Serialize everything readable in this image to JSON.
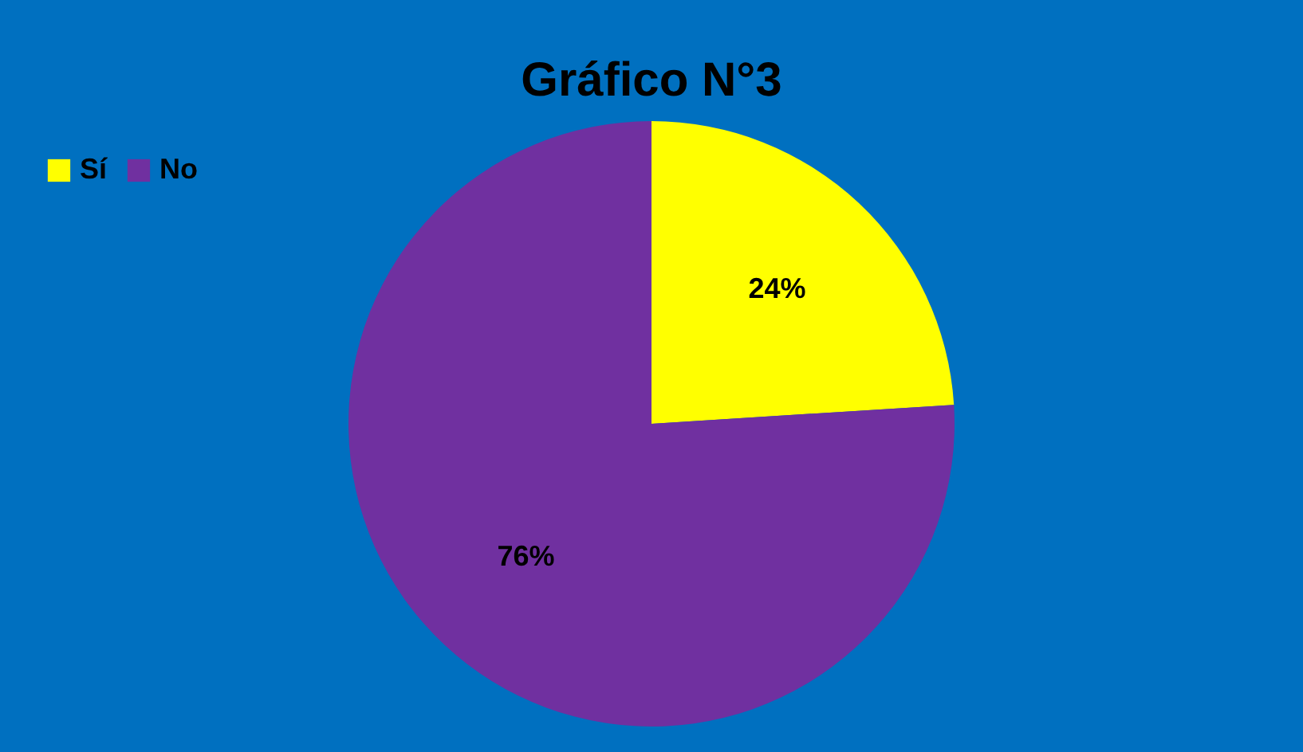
{
  "chart_data": {
    "type": "pie",
    "title": "Gráfico N°3",
    "categories": [
      "Sí",
      "No"
    ],
    "values": [
      24,
      76
    ],
    "colors": [
      "#ffff00",
      "#7030a0"
    ],
    "value_labels": [
      "24%",
      "76%"
    ],
    "legend": "top left"
  }
}
